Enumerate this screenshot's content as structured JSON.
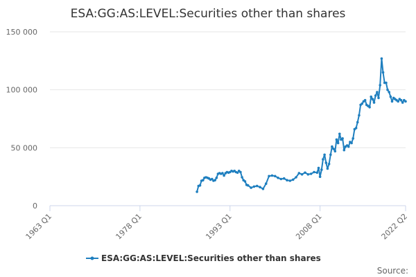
{
  "chart_data": {
    "type": "line",
    "title": "ESA:GG:AS:LEVEL:Securities other than shares",
    "xlabel": "",
    "ylabel": "",
    "y_ticks": [
      "0",
      "50 000",
      "100 000",
      "150 000"
    ],
    "y_tick_values": [
      0,
      50000,
      100000,
      150000
    ],
    "ylim": [
      0,
      150000
    ],
    "x_ticks": [
      "1963 Q1",
      "1978 Q1",
      "1993 Q1",
      "2008 Q1",
      "2022 Q2"
    ],
    "x_tick_values": [
      1963.0,
      1978.0,
      1993.0,
      2008.0,
      2022.25
    ],
    "xlim": [
      1963.0,
      2022.25
    ],
    "grid": "horizontal",
    "legend_position": "bottom",
    "series": [
      {
        "name": "ESA:GG:AS:LEVEL:Securities other than shares",
        "color": "#1f7fbf",
        "x": [
          1987.5,
          1987.75,
          1988.0,
          1988.25,
          1988.5,
          1988.75,
          1989.0,
          1989.25,
          1989.5,
          1989.75,
          1990.0,
          1990.25,
          1990.5,
          1990.75,
          1991.0,
          1991.25,
          1991.5,
          1991.75,
          1992.0,
          1992.25,
          1992.5,
          1992.75,
          1993.0,
          1993.25,
          1993.5,
          1993.75,
          1994.0,
          1994.25,
          1994.5,
          1994.75,
          1995.0,
          1995.25,
          1995.5,
          1995.75,
          1996.0,
          1996.5,
          1997.0,
          1997.5,
          1998.0,
          1998.5,
          1999.0,
          1999.5,
          2000.0,
          2000.5,
          2001.0,
          2001.5,
          2002.0,
          2002.5,
          2003.0,
          2003.5,
          2004.0,
          2004.5,
          2005.0,
          2005.5,
          2006.0,
          2006.5,
          2007.0,
          2007.5,
          2007.75,
          2008.0,
          2008.25,
          2008.5,
          2008.75,
          2009.0,
          2009.25,
          2009.5,
          2009.75,
          2010.0,
          2010.25,
          2010.5,
          2010.75,
          2011.0,
          2011.25,
          2011.5,
          2011.75,
          2012.0,
          2012.25,
          2012.5,
          2012.75,
          2013.0,
          2013.25,
          2013.5,
          2013.75,
          2014.0,
          2014.25,
          2014.5,
          2014.75,
          2015.0,
          2015.25,
          2015.5,
          2015.75,
          2016.0,
          2016.25,
          2016.5,
          2016.75,
          2017.0,
          2017.25,
          2017.5,
          2017.75,
          2018.0,
          2018.25,
          2018.5,
          2018.75,
          2019.0,
          2019.25,
          2019.5,
          2019.75,
          2020.0,
          2020.25,
          2020.5,
          2020.75,
          2021.0,
          2021.25,
          2021.5,
          2021.75,
          2022.0,
          2022.25
        ],
        "values": [
          12000,
          17000,
          17500,
          21500,
          22000,
          24000,
          24500,
          24000,
          23500,
          22500,
          23000,
          21500,
          22000,
          24000,
          27500,
          28000,
          27500,
          28000,
          26000,
          28000,
          29000,
          28500,
          29000,
          30000,
          29500,
          30000,
          29000,
          28500,
          30000,
          29000,
          24500,
          22000,
          21000,
          18000,
          17500,
          15500,
          16500,
          17000,
          16000,
          14500,
          19000,
          25500,
          26000,
          25500,
          24000,
          23000,
          23500,
          22000,
          21500,
          22500,
          24500,
          28000,
          27000,
          28500,
          27000,
          27500,
          29000,
          28500,
          32500,
          25000,
          31000,
          40000,
          44000,
          37000,
          32000,
          36000,
          44000,
          51000,
          49000,
          47000,
          57000,
          54000,
          62000,
          57000,
          58000,
          48000,
          51000,
          52000,
          51000,
          55000,
          54000,
          58000,
          66000,
          67000,
          72000,
          78000,
          87000,
          88000,
          90000,
          91000,
          87000,
          86000,
          85000,
          94000,
          92000,
          89000,
          95000,
          98000,
          93000,
          104000,
          127000,
          115000,
          106000,
          106000,
          100000,
          98000,
          94000,
          90000,
          93000,
          92000,
          91000,
          90000,
          92000,
          91000,
          89000,
          91000,
          90000
        ]
      }
    ]
  },
  "legend": {
    "label": "ESA:GG:AS:LEVEL:Securities other than shares"
  },
  "source": {
    "label": "Source:"
  }
}
